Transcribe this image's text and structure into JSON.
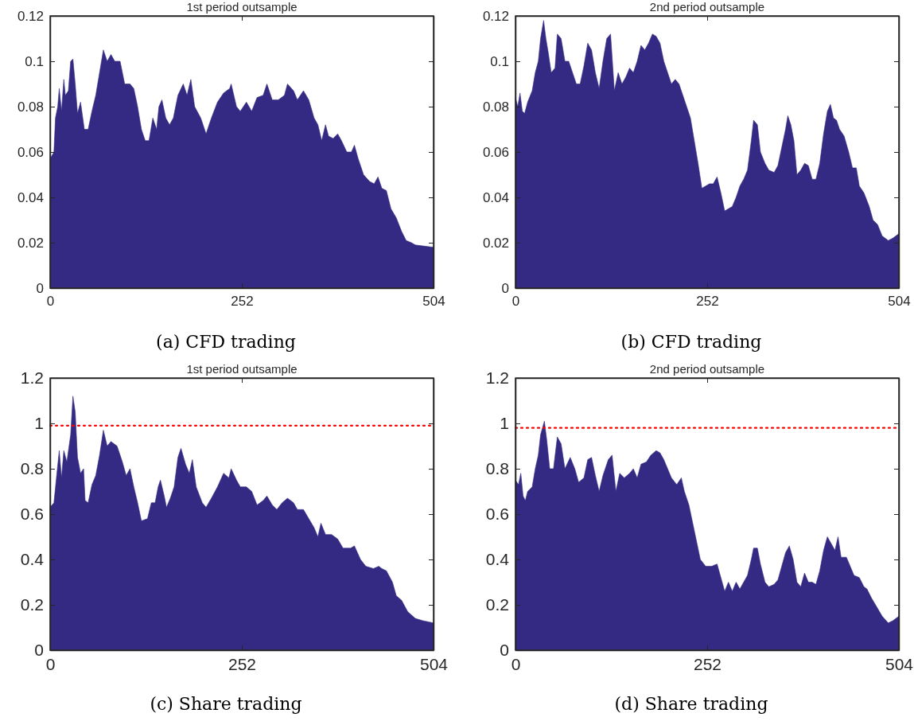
{
  "chart_data": [
    {
      "type": "area",
      "title": "1st period outsample",
      "annotations": [
        "(a) CFD trading"
      ],
      "xlim": [
        0,
        504
      ],
      "xticks": [
        0,
        252,
        504
      ],
      "ylim": [
        0,
        0.12
      ],
      "yticks": [
        0,
        0.02,
        0.04,
        0.06,
        0.08,
        0.1,
        0.12
      ],
      "grid": false,
      "series": [
        {
          "color": "#342a83",
          "x": [
            0,
            5,
            7,
            10,
            12,
            15,
            18,
            20,
            24,
            27,
            30,
            33,
            36,
            40,
            45,
            50,
            55,
            60,
            65,
            70,
            75,
            80,
            85,
            92,
            98,
            105,
            110,
            115,
            120,
            125,
            130,
            135,
            140,
            143,
            147,
            152,
            157,
            162,
            168,
            175,
            180,
            185,
            190,
            198,
            205,
            212,
            220,
            228,
            236,
            238,
            245,
            250,
            258,
            265,
            272,
            280,
            285,
            292,
            300,
            308,
            312,
            320,
            325,
            333,
            340,
            347,
            352,
            357,
            362,
            366,
            372,
            378,
            383,
            390,
            396,
            400,
            405,
            412,
            420,
            426,
            431,
            436,
            442,
            448,
            455,
            462,
            468,
            475,
            480,
            504
          ],
          "values": [
            0.057,
            0.06,
            0.075,
            0.08,
            0.088,
            0.078,
            0.092,
            0.085,
            0.087,
            0.1,
            0.101,
            0.09,
            0.077,
            0.082,
            0.07,
            0.07,
            0.078,
            0.085,
            0.095,
            0.105,
            0.1,
            0.103,
            0.1,
            0.1,
            0.09,
            0.09,
            0.088,
            0.08,
            0.07,
            0.065,
            0.065,
            0.075,
            0.07,
            0.08,
            0.083,
            0.075,
            0.072,
            0.075,
            0.085,
            0.09,
            0.085,
            0.092,
            0.08,
            0.075,
            0.068,
            0.075,
            0.082,
            0.086,
            0.088,
            0.09,
            0.08,
            0.078,
            0.082,
            0.078,
            0.084,
            0.085,
            0.09,
            0.083,
            0.083,
            0.085,
            0.09,
            0.087,
            0.083,
            0.087,
            0.083,
            0.075,
            0.072,
            0.065,
            0.072,
            0.067,
            0.066,
            0.068,
            0.065,
            0.06,
            0.06,
            0.063,
            0.057,
            0.05,
            0.047,
            0.046,
            0.049,
            0.044,
            0.043,
            0.035,
            0.031,
            0.025,
            0.021,
            0.02,
            0.019,
            0.018
          ]
        }
      ]
    },
    {
      "type": "area",
      "title": "2nd period outsample",
      "annotations": [
        "(b) CFD trading"
      ],
      "xlim": [
        0,
        504
      ],
      "xticks": [
        0,
        252,
        504
      ],
      "ylim": [
        0,
        0.12
      ],
      "yticks": [
        0,
        0.02,
        0.04,
        0.06,
        0.08,
        0.1,
        0.12
      ],
      "grid": false,
      "series": [
        {
          "color": "#342a83",
          "x": [
            0,
            3,
            6,
            9,
            12,
            16,
            22,
            26,
            30,
            33,
            37,
            40,
            43,
            47,
            52,
            55,
            60,
            65,
            70,
            75,
            80,
            85,
            90,
            95,
            100,
            105,
            110,
            115,
            120,
            125,
            130,
            135,
            140,
            145,
            150,
            155,
            160,
            165,
            170,
            175,
            180,
            185,
            190,
            195,
            200,
            205,
            210,
            215,
            220,
            225,
            230,
            235,
            240,
            245,
            250,
            255,
            260,
            265,
            270,
            275,
            280,
            285,
            290,
            295,
            300,
            305,
            310,
            313,
            318,
            322,
            328,
            333,
            340,
            345,
            350,
            355,
            358,
            362,
            366,
            370,
            375,
            380,
            385,
            390,
            395,
            400,
            405,
            410,
            414,
            418,
            422,
            426,
            432,
            438,
            443,
            448,
            452,
            458,
            465,
            470,
            476,
            482,
            490,
            496,
            504
          ],
          "values": [
            0.084,
            0.08,
            0.086,
            0.078,
            0.077,
            0.082,
            0.087,
            0.095,
            0.1,
            0.11,
            0.118,
            0.11,
            0.104,
            0.095,
            0.097,
            0.112,
            0.11,
            0.1,
            0.1,
            0.095,
            0.09,
            0.09,
            0.098,
            0.108,
            0.105,
            0.095,
            0.088,
            0.1,
            0.11,
            0.112,
            0.087,
            0.095,
            0.09,
            0.093,
            0.097,
            0.095,
            0.1,
            0.107,
            0.105,
            0.108,
            0.112,
            0.111,
            0.108,
            0.1,
            0.095,
            0.09,
            0.092,
            0.09,
            0.085,
            0.08,
            0.075,
            0.065,
            0.055,
            0.044,
            0.045,
            0.046,
            0.046,
            0.049,
            0.042,
            0.034,
            0.035,
            0.036,
            0.04,
            0.045,
            0.048,
            0.052,
            0.065,
            0.074,
            0.072,
            0.06,
            0.055,
            0.052,
            0.051,
            0.054,
            0.062,
            0.07,
            0.076,
            0.072,
            0.065,
            0.05,
            0.052,
            0.055,
            0.054,
            0.048,
            0.048,
            0.055,
            0.068,
            0.078,
            0.081,
            0.075,
            0.074,
            0.07,
            0.067,
            0.06,
            0.053,
            0.053,
            0.045,
            0.042,
            0.036,
            0.03,
            0.028,
            0.023,
            0.021,
            0.022,
            0.024
          ]
        }
      ]
    },
    {
      "type": "area",
      "title": "1st period outsample",
      "annotations": [
        "(c) Share trading"
      ],
      "xlim": [
        0,
        504
      ],
      "xticks": [
        0,
        252,
        504
      ],
      "ylim": [
        0,
        1.2
      ],
      "yticks": [
        0,
        0.2,
        0.4,
        0.6,
        0.8,
        1,
        1.2
      ],
      "grid": false,
      "ref_lines": [
        {
          "axis": "y",
          "value": 0.99,
          "color": "#ff0000",
          "line_style": "dotted"
        }
      ],
      "series": [
        {
          "color": "#342a83",
          "x": [
            0,
            5,
            8,
            12,
            15,
            18,
            22,
            27,
            30,
            33,
            36,
            40,
            44,
            46,
            50,
            55,
            60,
            65,
            70,
            75,
            80,
            88,
            95,
            100,
            105,
            110,
            115,
            120,
            128,
            133,
            138,
            142,
            145,
            150,
            153,
            158,
            163,
            168,
            172,
            178,
            183,
            187,
            192,
            200,
            205,
            212,
            220,
            228,
            235,
            238,
            245,
            250,
            258,
            265,
            272,
            280,
            285,
            292,
            298,
            305,
            312,
            320,
            325,
            333,
            340,
            347,
            352,
            356,
            362,
            370,
            378,
            385,
            395,
            400,
            408,
            415,
            425,
            432,
            436,
            442,
            450,
            455,
            462,
            470,
            480,
            490,
            504
          ],
          "values": [
            0.63,
            0.65,
            0.75,
            0.88,
            0.76,
            0.88,
            0.83,
            0.95,
            1.12,
            1.05,
            0.85,
            0.78,
            0.8,
            0.66,
            0.65,
            0.73,
            0.77,
            0.86,
            0.97,
            0.9,
            0.92,
            0.9,
            0.83,
            0.77,
            0.8,
            0.72,
            0.65,
            0.57,
            0.58,
            0.65,
            0.65,
            0.72,
            0.75,
            0.68,
            0.63,
            0.67,
            0.72,
            0.85,
            0.89,
            0.82,
            0.78,
            0.84,
            0.72,
            0.65,
            0.63,
            0.67,
            0.72,
            0.78,
            0.76,
            0.8,
            0.75,
            0.72,
            0.72,
            0.7,
            0.64,
            0.66,
            0.68,
            0.64,
            0.62,
            0.65,
            0.67,
            0.65,
            0.62,
            0.62,
            0.58,
            0.54,
            0.5,
            0.56,
            0.51,
            0.51,
            0.49,
            0.45,
            0.45,
            0.46,
            0.4,
            0.37,
            0.36,
            0.37,
            0.36,
            0.35,
            0.3,
            0.24,
            0.22,
            0.17,
            0.14,
            0.13,
            0.12
          ]
        }
      ]
    },
    {
      "type": "area",
      "title": "2nd period outsample",
      "annotations": [
        "(d) Share trading"
      ],
      "xlim": [
        0,
        504
      ],
      "xticks": [
        0,
        252,
        504
      ],
      "ylim": [
        0,
        1.2
      ],
      "yticks": [
        0,
        0.2,
        0.4,
        0.6,
        0.8,
        1,
        1.2
      ],
      "grid": false,
      "ref_lines": [
        {
          "axis": "y",
          "value": 0.98,
          "color": "#ff0000",
          "line_style": "dotted"
        }
      ],
      "series": [
        {
          "color": "#342a83",
          "x": [
            0,
            4,
            7,
            10,
            13,
            16,
            22,
            26,
            30,
            33,
            38,
            41,
            45,
            50,
            55,
            60,
            65,
            72,
            78,
            83,
            90,
            95,
            100,
            105,
            110,
            115,
            122,
            127,
            132,
            137,
            143,
            150,
            155,
            160,
            165,
            172,
            178,
            185,
            190,
            195,
            200,
            205,
            212,
            218,
            222,
            228,
            233,
            238,
            243,
            250,
            258,
            265,
            270,
            275,
            280,
            285,
            290,
            295,
            300,
            305,
            310,
            313,
            318,
            322,
            328,
            333,
            340,
            345,
            350,
            355,
            360,
            365,
            370,
            375,
            380,
            385,
            390,
            395,
            400,
            405,
            410,
            415,
            420,
            424,
            428,
            435,
            440,
            445,
            452,
            458,
            462,
            468,
            475,
            482,
            490,
            496,
            504
          ],
          "values": [
            0.75,
            0.73,
            0.78,
            0.68,
            0.66,
            0.7,
            0.72,
            0.8,
            0.86,
            0.95,
            1.01,
            0.93,
            0.8,
            0.8,
            0.94,
            0.91,
            0.8,
            0.85,
            0.8,
            0.74,
            0.76,
            0.84,
            0.85,
            0.77,
            0.7,
            0.77,
            0.84,
            0.86,
            0.7,
            0.78,
            0.76,
            0.78,
            0.8,
            0.76,
            0.82,
            0.83,
            0.86,
            0.88,
            0.87,
            0.84,
            0.8,
            0.76,
            0.73,
            0.76,
            0.7,
            0.64,
            0.56,
            0.48,
            0.4,
            0.37,
            0.37,
            0.38,
            0.32,
            0.26,
            0.3,
            0.26,
            0.3,
            0.27,
            0.3,
            0.33,
            0.4,
            0.45,
            0.45,
            0.38,
            0.3,
            0.28,
            0.29,
            0.31,
            0.37,
            0.43,
            0.46,
            0.4,
            0.3,
            0.28,
            0.34,
            0.3,
            0.3,
            0.29,
            0.35,
            0.44,
            0.5,
            0.47,
            0.44,
            0.5,
            0.41,
            0.41,
            0.37,
            0.33,
            0.32,
            0.28,
            0.27,
            0.23,
            0.19,
            0.15,
            0.12,
            0.13,
            0.15
          ]
        }
      ]
    }
  ]
}
